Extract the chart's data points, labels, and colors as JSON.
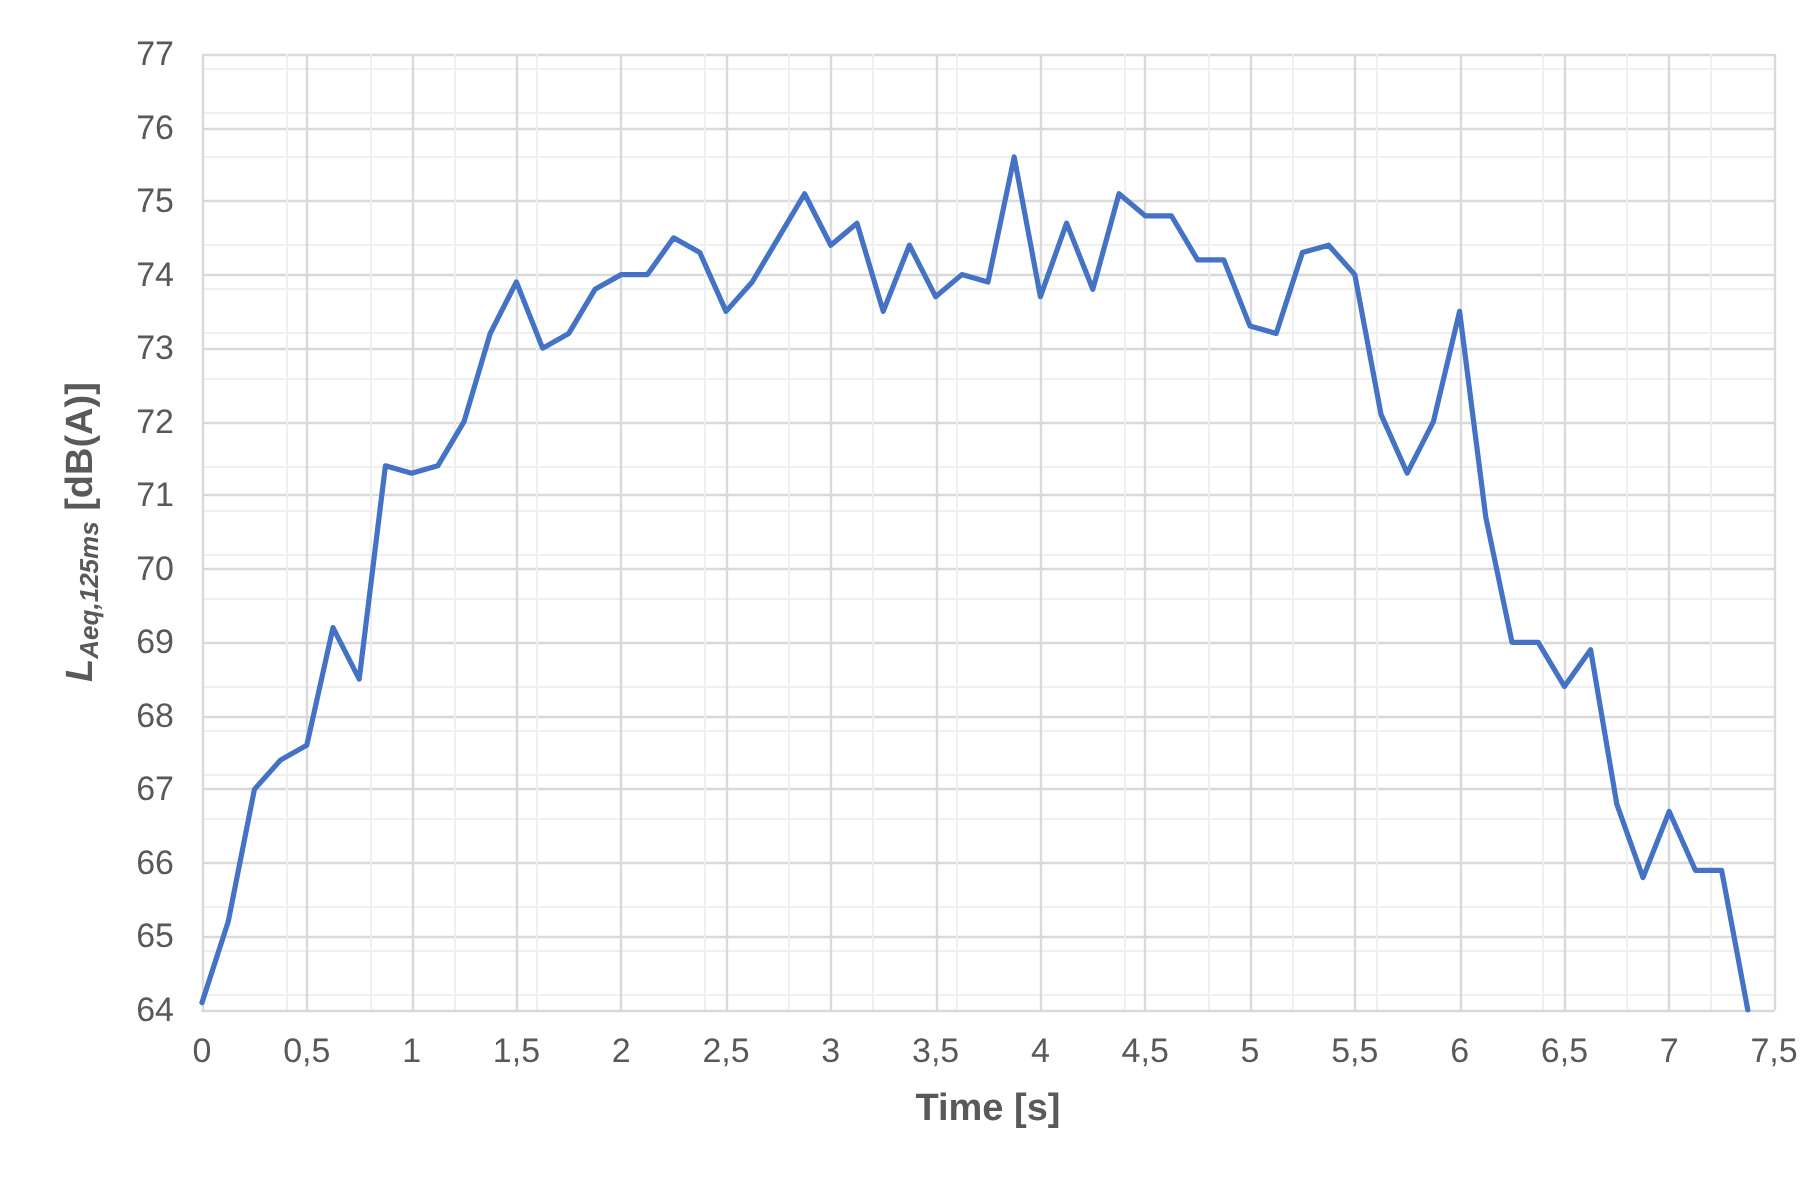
{
  "chart_data": {
    "type": "line",
    "xlabel": "Time [s]",
    "ylabel": "L$_{Aeq,125ms}$ [dB(A)]",
    "x": [
      0,
      0.125,
      0.25,
      0.375,
      0.5,
      0.625,
      0.75,
      0.875,
      1,
      1.125,
      1.25,
      1.375,
      1.5,
      1.625,
      1.75,
      1.875,
      2,
      2.125,
      2.25,
      2.375,
      2.5,
      2.625,
      2.75,
      2.875,
      3,
      3.125,
      3.25,
      3.375,
      3.5,
      3.625,
      3.75,
      3.875,
      4,
      4.125,
      4.25,
      4.375,
      4.5,
      4.625,
      4.75,
      4.875,
      5,
      5.125,
      5.25,
      5.375,
      5.5,
      5.625,
      5.75,
      5.875,
      6,
      6.125,
      6.25,
      6.375,
      6.5,
      6.625,
      6.75,
      6.875,
      7,
      7.125,
      7.25,
      7.375
    ],
    "series": [
      {
        "color": "#4472c4",
        "values": [
          64.1,
          65.2,
          67.0,
          67.4,
          67.6,
          69.2,
          68.5,
          71.4,
          71.3,
          71.4,
          72.0,
          73.2,
          73.9,
          73.0,
          73.2,
          73.8,
          74.0,
          74.0,
          74.5,
          74.3,
          73.5,
          73.9,
          74.5,
          75.1,
          74.4,
          74.7,
          73.5,
          74.4,
          73.7,
          74.0,
          73.9,
          75.6,
          73.7,
          74.7,
          73.8,
          75.1,
          74.8,
          74.8,
          74.2,
          74.2,
          73.3,
          73.2,
          74.3,
          74.4,
          74.0,
          72.1,
          71.3,
          72.0,
          73.5,
          70.7,
          69.0,
          69.0,
          68.4,
          68.9,
          66.8,
          65.8,
          66.7,
          65.9,
          65.9,
          64.0
        ]
      }
    ],
    "xlim": [
      0,
      7.5
    ],
    "xticks": [
      0,
      {
        "value": 0.5,
        "label": "0,5"
      },
      1,
      {
        "value": 1.5,
        "label": "1,5"
      },
      2,
      {
        "value": 2.5,
        "label": "2,5"
      },
      3,
      {
        "value": 3.5,
        "label": "3,5"
      },
      4,
      {
        "value": 4.5,
        "label": "4,5"
      },
      5,
      {
        "value": 5.5,
        "label": "5,5"
      },
      6,
      {
        "value": 6.5,
        "label": "6,5"
      },
      7,
      {
        "value": 7.5,
        "label": "7,5"
      }
    ],
    "ylim": [
      64,
      77
    ],
    "yticks": [
      64,
      65,
      66,
      67,
      68,
      69,
      70,
      71,
      72,
      73,
      74,
      75,
      76,
      77
    ],
    "grid": true,
    "marker": "none",
    "line_style": "solid"
  }
}
